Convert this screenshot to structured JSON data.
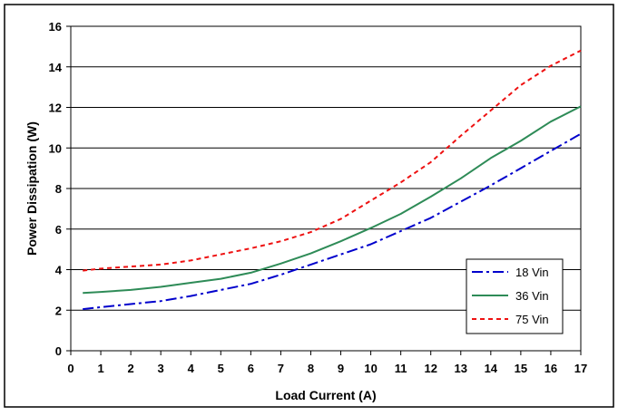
{
  "chart_data": {
    "type": "line",
    "title": "",
    "xlabel": "Load Current (A)",
    "ylabel": "Power Dissipation (W)",
    "xlim": [
      0,
      17
    ],
    "ylim": [
      0,
      16
    ],
    "x_ticks": [
      "0",
      "1",
      "2",
      "3",
      "4",
      "5",
      "6",
      "7",
      "8",
      "9",
      "10",
      "11",
      "12",
      "13",
      "14",
      "15",
      "16",
      "17"
    ],
    "y_ticks": [
      "0",
      "2",
      "4",
      "6",
      "8",
      "10",
      "12",
      "14",
      "16"
    ],
    "grid": "horizontal",
    "legend_position": "bottom-right",
    "series": [
      {
        "name": "18 Vin",
        "color": "#0000cc",
        "dash": "dash-dot",
        "x": [
          0.4,
          1,
          2,
          3,
          4,
          5,
          6,
          7,
          8,
          9,
          10,
          11,
          12,
          13,
          14,
          15,
          16,
          17
        ],
        "y": [
          2.05,
          2.15,
          2.3,
          2.45,
          2.7,
          3.0,
          3.3,
          3.75,
          4.25,
          4.75,
          5.25,
          5.9,
          6.55,
          7.35,
          8.15,
          9.0,
          9.85,
          10.7
        ]
      },
      {
        "name": "36 Vin",
        "color": "#2e8b57",
        "dash": "solid",
        "x": [
          0.4,
          1,
          2,
          3,
          4,
          5,
          6,
          7,
          8,
          9,
          10,
          11,
          12,
          13,
          14,
          15,
          16,
          17
        ],
        "y": [
          2.85,
          2.9,
          3.0,
          3.15,
          3.35,
          3.55,
          3.85,
          4.3,
          4.8,
          5.4,
          6.05,
          6.75,
          7.6,
          8.5,
          9.5,
          10.35,
          11.3,
          12.05
        ]
      },
      {
        "name": "75 Vin",
        "color": "#ee1111",
        "dash": "dotted",
        "x": [
          0.4,
          1,
          2,
          3,
          4,
          5,
          6,
          7,
          8,
          9,
          10,
          11,
          12,
          13,
          14,
          15,
          16,
          17
        ],
        "y": [
          3.95,
          4.05,
          4.15,
          4.25,
          4.45,
          4.75,
          5.05,
          5.4,
          5.85,
          6.5,
          7.4,
          8.3,
          9.3,
          10.6,
          11.85,
          13.1,
          14.05,
          14.8
        ]
      }
    ]
  }
}
